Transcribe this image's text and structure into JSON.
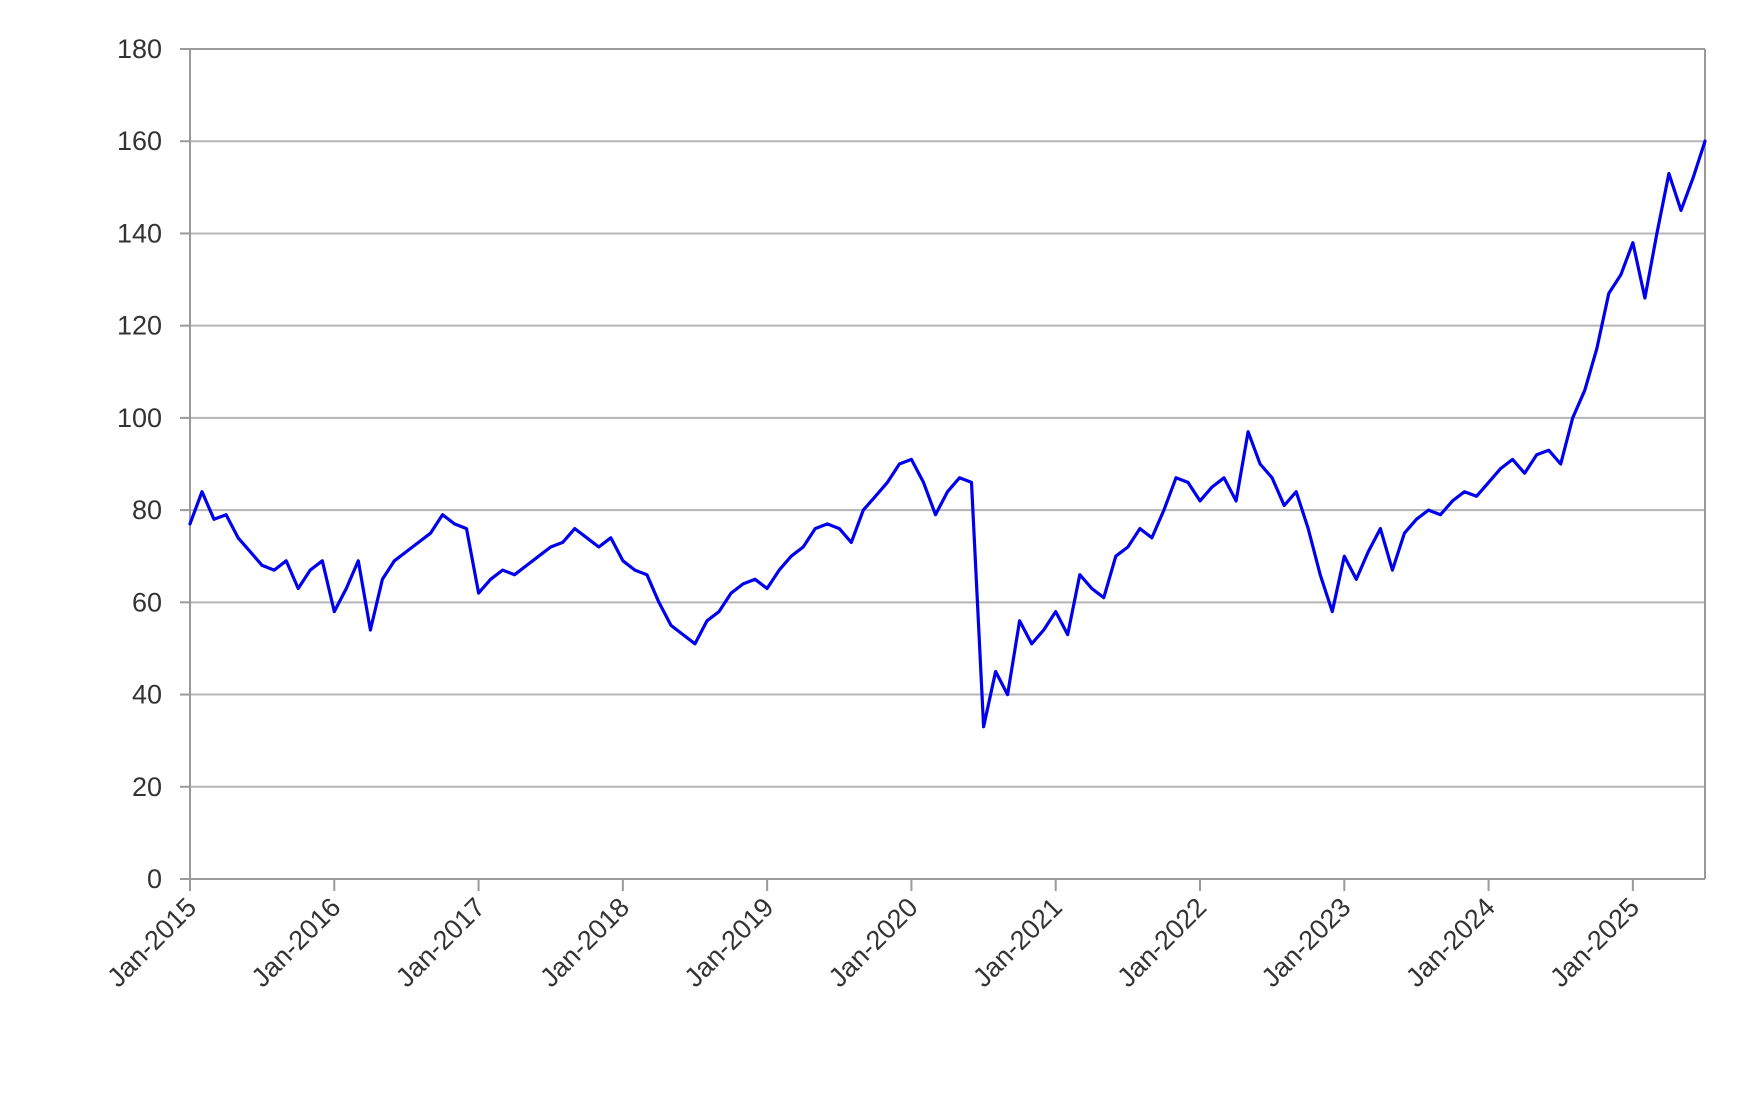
{
  "chart_data": {
    "type": "line",
    "title": "",
    "xlabel": "",
    "ylabel": "",
    "ylim": [
      0,
      180
    ],
    "xlim": [
      "2015-01",
      "2025-07"
    ],
    "y_ticks": [
      0,
      20,
      40,
      60,
      80,
      100,
      120,
      140,
      160,
      180
    ],
    "x_ticks": [
      "2015-01",
      "2016-01",
      "2017-01",
      "2018-01",
      "2019-01",
      "2020-01",
      "2021-01",
      "2022-01",
      "2023-01",
      "2024-01",
      "2025-01"
    ],
    "x_tick_labels": [
      "Jan-2015",
      "Jan-2016",
      "Jan-2017",
      "Jan-2018",
      "Jan-2019",
      "Jan-2020",
      "Jan-2021",
      "Jan-2022",
      "Jan-2023",
      "Jan-2024",
      "Jan-2025"
    ],
    "grid": "horizontal",
    "legend": "none",
    "series": [
      {
        "color": "#0000ee",
        "points": [
          [
            "2015-01",
            77
          ],
          [
            "2015-02",
            84
          ],
          [
            "2015-03",
            78
          ],
          [
            "2015-04",
            79
          ],
          [
            "2015-05",
            74
          ],
          [
            "2015-06",
            71
          ],
          [
            "2015-07",
            68
          ],
          [
            "2015-08",
            67
          ],
          [
            "2015-09",
            69
          ],
          [
            "2015-10",
            63
          ],
          [
            "2015-11",
            67
          ],
          [
            "2015-12",
            69
          ],
          [
            "2016-01",
            58
          ],
          [
            "2016-02",
            63
          ],
          [
            "2016-03",
            69
          ],
          [
            "2016-04",
            54
          ],
          [
            "2016-05",
            65
          ],
          [
            "2016-06",
            69
          ],
          [
            "2016-07",
            71
          ],
          [
            "2016-08",
            73
          ],
          [
            "2016-09",
            75
          ],
          [
            "2016-10",
            79
          ],
          [
            "2016-11",
            77
          ],
          [
            "2016-12",
            76
          ],
          [
            "2017-01",
            62
          ],
          [
            "2017-02",
            65
          ],
          [
            "2017-03",
            67
          ],
          [
            "2017-04",
            66
          ],
          [
            "2017-05",
            68
          ],
          [
            "2017-06",
            70
          ],
          [
            "2017-07",
            72
          ],
          [
            "2017-08",
            73
          ],
          [
            "2017-09",
            76
          ],
          [
            "2017-10",
            74
          ],
          [
            "2017-11",
            72
          ],
          [
            "2017-12",
            74
          ],
          [
            "2018-01",
            69
          ],
          [
            "2018-02",
            67
          ],
          [
            "2018-03",
            66
          ],
          [
            "2018-04",
            60
          ],
          [
            "2018-05",
            55
          ],
          [
            "2018-06",
            53
          ],
          [
            "2018-07",
            51
          ],
          [
            "2018-08",
            56
          ],
          [
            "2018-09",
            58
          ],
          [
            "2018-10",
            62
          ],
          [
            "2018-11",
            64
          ],
          [
            "2018-12",
            65
          ],
          [
            "2019-01",
            63
          ],
          [
            "2019-02",
            67
          ],
          [
            "2019-03",
            70
          ],
          [
            "2019-04",
            72
          ],
          [
            "2019-05",
            76
          ],
          [
            "2019-06",
            77
          ],
          [
            "2019-07",
            76
          ],
          [
            "2019-08",
            73
          ],
          [
            "2019-09",
            80
          ],
          [
            "2019-10",
            83
          ],
          [
            "2019-11",
            86
          ],
          [
            "2019-12",
            90
          ],
          [
            "2020-01",
            91
          ],
          [
            "2020-02",
            86
          ],
          [
            "2020-03",
            79
          ],
          [
            "2020-04",
            84
          ],
          [
            "2020-05",
            87
          ],
          [
            "2020-06",
            86
          ],
          [
            "2020-07",
            33
          ],
          [
            "2020-08",
            45
          ],
          [
            "2020-09",
            40
          ],
          [
            "2020-10",
            56
          ],
          [
            "2020-11",
            51
          ],
          [
            "2020-12",
            54
          ],
          [
            "2021-01",
            58
          ],
          [
            "2021-02",
            53
          ],
          [
            "2021-03",
            66
          ],
          [
            "2021-04",
            63
          ],
          [
            "2021-05",
            61
          ],
          [
            "2021-06",
            70
          ],
          [
            "2021-07",
            72
          ],
          [
            "2021-08",
            76
          ],
          [
            "2021-09",
            74
          ],
          [
            "2021-10",
            80
          ],
          [
            "2021-11",
            87
          ],
          [
            "2021-12",
            86
          ],
          [
            "2022-01",
            82
          ],
          [
            "2022-02",
            85
          ],
          [
            "2022-03",
            87
          ],
          [
            "2022-04",
            82
          ],
          [
            "2022-05",
            97
          ],
          [
            "2022-06",
            90
          ],
          [
            "2022-07",
            87
          ],
          [
            "2022-08",
            81
          ],
          [
            "2022-09",
            84
          ],
          [
            "2022-10",
            76
          ],
          [
            "2022-11",
            66
          ],
          [
            "2022-12",
            58
          ],
          [
            "2023-01",
            70
          ],
          [
            "2023-02",
            65
          ],
          [
            "2023-03",
            71
          ],
          [
            "2023-04",
            76
          ],
          [
            "2023-05",
            67
          ],
          [
            "2023-06",
            75
          ],
          [
            "2023-07",
            78
          ],
          [
            "2023-08",
            80
          ],
          [
            "2023-09",
            79
          ],
          [
            "2023-10",
            82
          ],
          [
            "2023-11",
            84
          ],
          [
            "2023-12",
            83
          ],
          [
            "2024-01",
            86
          ],
          [
            "2024-02",
            89
          ],
          [
            "2024-03",
            91
          ],
          [
            "2024-04",
            88
          ],
          [
            "2024-05",
            92
          ],
          [
            "2024-06",
            93
          ],
          [
            "2024-07",
            90
          ],
          [
            "2024-08",
            100
          ],
          [
            "2024-09",
            106
          ],
          [
            "2024-10",
            115
          ],
          [
            "2024-11",
            127
          ],
          [
            "2024-12",
            131
          ],
          [
            "2025-01",
            138
          ],
          [
            "2025-02",
            126
          ],
          [
            "2025-03",
            140
          ],
          [
            "2025-04",
            153
          ],
          [
            "2025-05",
            145
          ],
          [
            "2025-06",
            152
          ],
          [
            "2025-07",
            160
          ]
        ]
      }
    ]
  }
}
